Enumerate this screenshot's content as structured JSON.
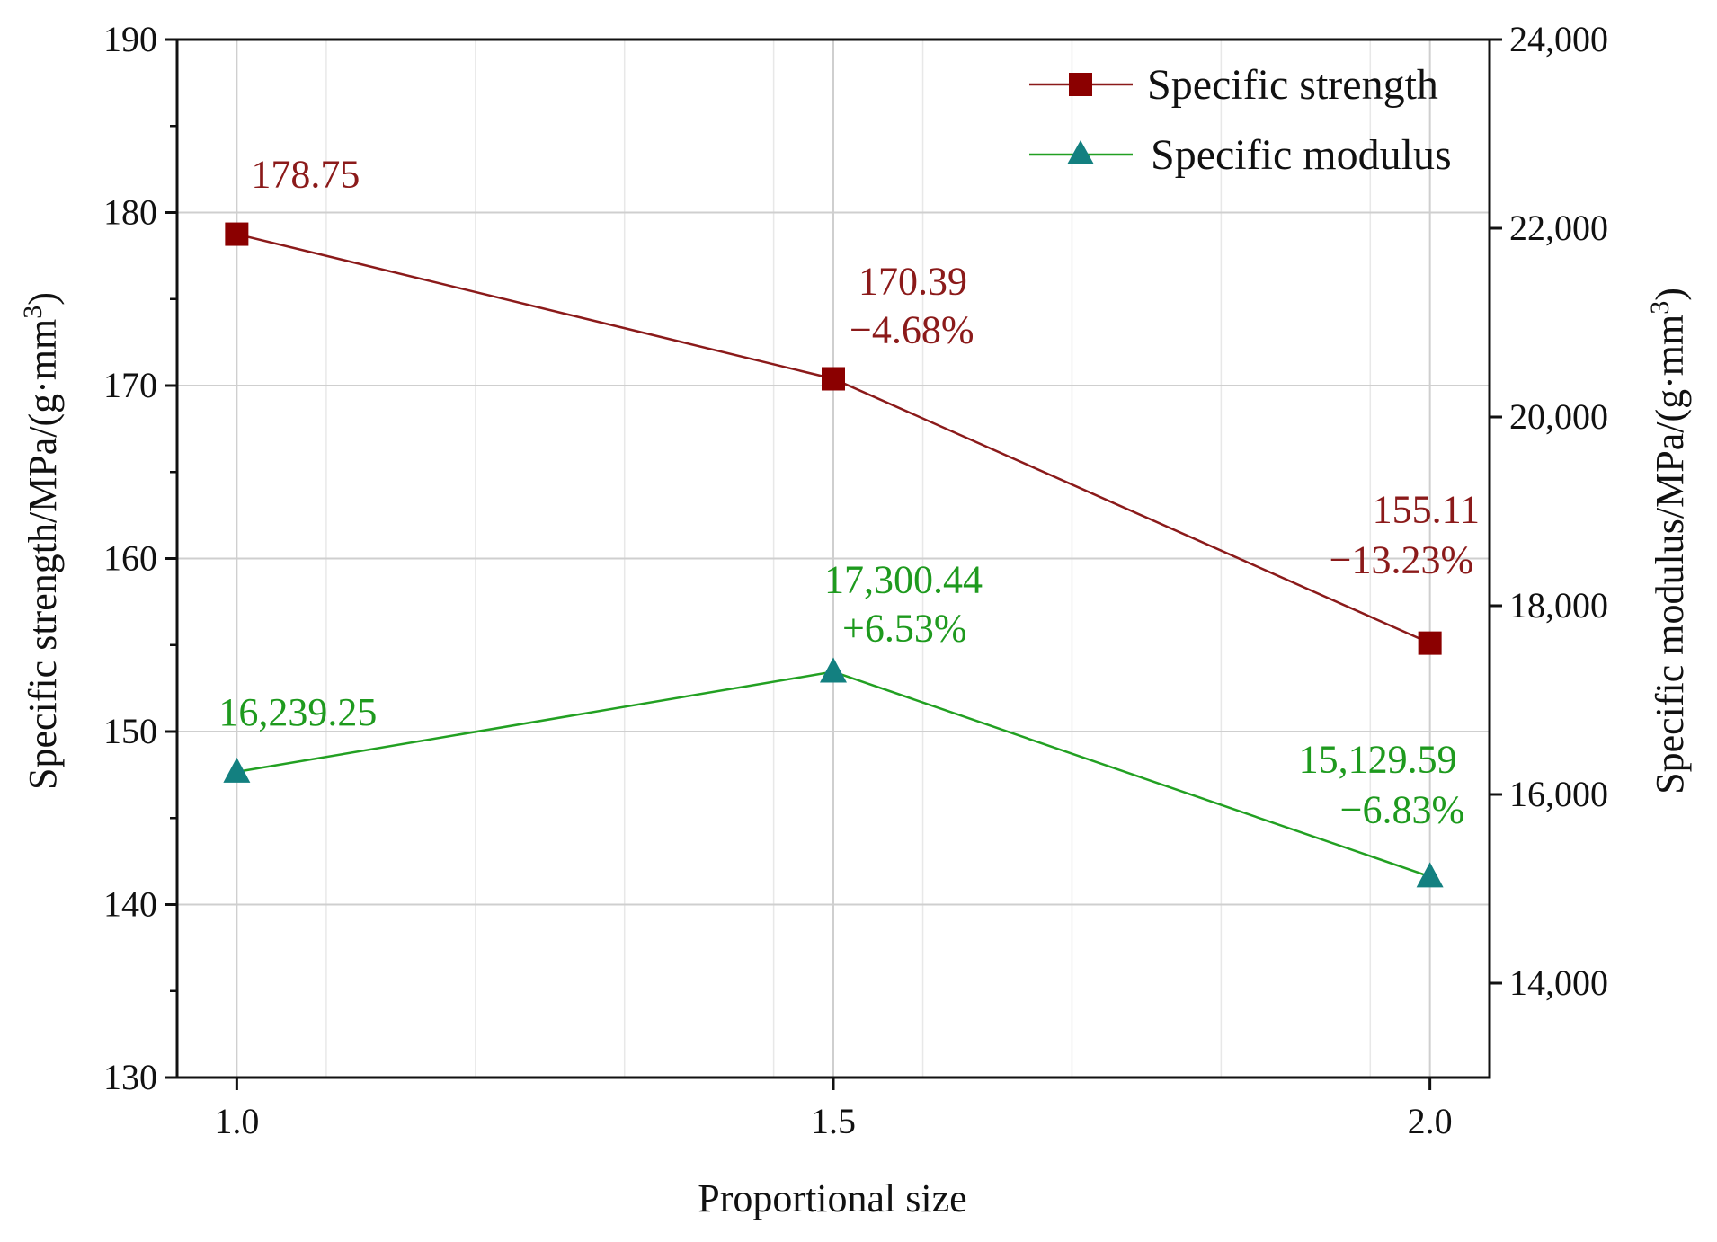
{
  "chart_data": {
    "type": "line",
    "title": "",
    "xlabel": "Proportional size",
    "ylabel_left": "Specific strength/MPa/(g·mm",
    "ylabel_left_sup": "3",
    "ylabel_left_end": ")",
    "ylabel_right": "Specific modulus/MPa/(g·mm",
    "ylabel_right_sup": "3",
    "ylabel_right_end": ")",
    "x": [
      1.0,
      1.5,
      2.0
    ],
    "x_tick_labels": [
      "1.0",
      "1.5",
      "2.0"
    ],
    "xlim": [
      0.95,
      2.05
    ],
    "ylim_left": [
      130,
      190
    ],
    "y_left_ticks": [
      130,
      140,
      150,
      160,
      170,
      180,
      190
    ],
    "y_left_tick_labels": [
      "130",
      "140",
      "150",
      "160",
      "170",
      "180",
      "190"
    ],
    "ylim_right": [
      13000,
      24000
    ],
    "y_right_ticks": [
      14000,
      16000,
      18000,
      20000,
      22000,
      24000
    ],
    "y_right_tick_labels": [
      "14,000",
      "16,000",
      "18,000",
      "20,000",
      "22,000",
      "24,000"
    ],
    "grid": true,
    "legend_position": "top-right",
    "series": [
      {
        "name": "Specific strength",
        "axis": "left",
        "marker": "square",
        "line_color": "#8B1A1A",
        "marker_color": "#8B0000",
        "label_color": "#8B1A1A",
        "values": [
          178.75,
          170.39,
          155.11
        ],
        "labels": [
          [
            "178.75"
          ],
          [
            "170.39",
            "−4.68%"
          ],
          [
            "155.11",
            "−13.23%"
          ]
        ]
      },
      {
        "name": "Specific modulus",
        "axis": "right",
        "marker": "triangle",
        "line_color": "#22A022",
        "marker_color": "#138080",
        "label_color": "#1E9A1E",
        "values": [
          16239.25,
          17300.44,
          15129.59
        ],
        "labels": [
          [
            "16,239.25"
          ],
          [
            "17,300.44",
            "+6.53%"
          ],
          [
            "15,129.59",
            "−6.83%"
          ]
        ]
      }
    ]
  }
}
